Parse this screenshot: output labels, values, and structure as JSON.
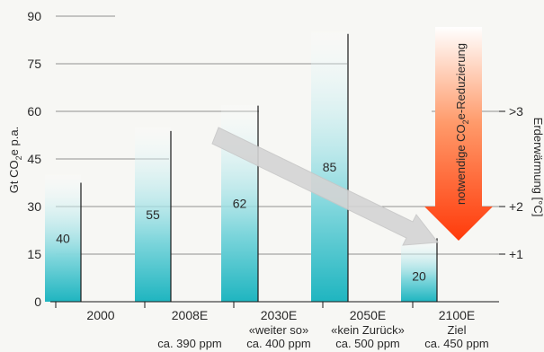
{
  "chart_data": {
    "type": "bar",
    "categories": [
      "2000",
      "2008E",
      "2030E",
      "2050E",
      "2100E"
    ],
    "category_sublabels": [
      [
        "",
        ""
      ],
      [
        "",
        "ca. 390 ppm"
      ],
      [
        "«weiter so»",
        "ca. 400 ppm"
      ],
      [
        "«kein Zurück»",
        "ca. 500 ppm"
      ],
      [
        "Ziel",
        "ca. 450 ppm"
      ]
    ],
    "values": [
      40,
      55,
      62,
      85,
      20
    ],
    "value_labels": [
      "40",
      "55",
      "62",
      "85",
      "20"
    ],
    "ylabel_parts": {
      "before": "Gt CO",
      "sub": "2",
      "after": "e p.a."
    },
    "ylim": [
      0,
      90
    ],
    "yticks": [
      "0",
      "15",
      "30",
      "45",
      "60",
      "75",
      "90"
    ],
    "ytick_values": [
      0,
      15,
      30,
      45,
      60,
      75,
      90
    ],
    "right_axis_label": "Erderwärmung [°C]",
    "right_ticks": [
      {
        "label": ">3",
        "at": 60
      },
      {
        "label": "+2",
        "at": 30
      },
      {
        "label": "+1",
        "at": 15
      }
    ],
    "annotation_parts": {
      "before": "notwendige CO",
      "sub": "2",
      "after": "e-Reduzierung"
    },
    "grid": true,
    "colors": {
      "bar_bottom": "#1fb5c0",
      "bar_top": "#ffffff",
      "reduction_arrow_top": "#ffffff",
      "reduction_arrow_bottom": "#ff3a0a",
      "trend_arrow": "#d4d4d4",
      "grid": "#6f6f6f",
      "line": "#1a1a1a"
    }
  }
}
